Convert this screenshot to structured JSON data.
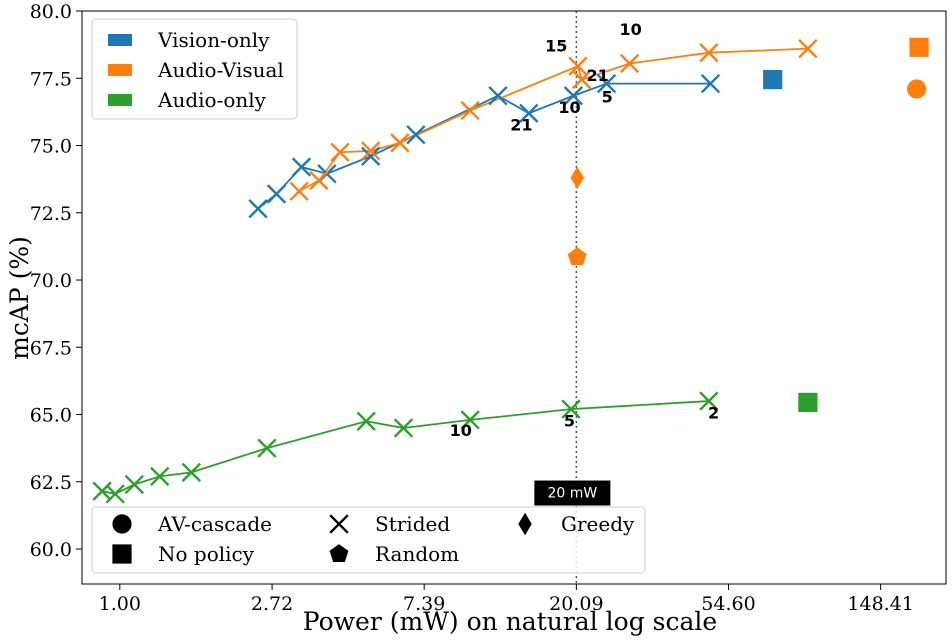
{
  "chart_data": {
    "type": "line",
    "xlabel": "Power (mW) on natural log scale",
    "ylabel": "mcAP (%)",
    "xscale": "log",
    "xlim": [
      0.78,
      228
    ],
    "ylim": [
      58.7,
      80.0
    ],
    "xticks": [
      1.0,
      2.72,
      7.39,
      20.09,
      54.6,
      148.41
    ],
    "xtick_labels": [
      "1.00",
      "2.72",
      "7.39",
      "20.09",
      "54.60",
      "148.41"
    ],
    "yticks": [
      60.0,
      62.5,
      65.0,
      67.5,
      70.0,
      72.5,
      75.0,
      77.5,
      80.0
    ],
    "ytick_labels": [
      "60.0",
      "62.5",
      "65.0",
      "67.5",
      "70.0",
      "72.5",
      "75.0",
      "77.5",
      "80.0"
    ],
    "grid": false,
    "colors": {
      "vision": "#1f77b4",
      "audiovisual": "#ff7f0e",
      "audio": "#2ca02c"
    },
    "series": [
      {
        "name": "Vision-only",
        "key": "vision",
        "marker": "x",
        "x": [
          2.48,
          2.8,
          3.3,
          3.9,
          5.2,
          7.0,
          12.0,
          14.7,
          19.7,
          24.5,
          48.5
        ],
        "y": [
          72.65,
          73.2,
          74.2,
          73.95,
          74.6,
          75.4,
          76.85,
          76.2,
          76.85,
          77.3,
          77.3
        ]
      },
      {
        "name": "Audio-Visual",
        "key": "audiovisual",
        "marker": "x",
        "x": [
          3.25,
          3.7,
          4.25,
          5.2,
          6.3,
          10.0,
          20.3,
          20.8,
          28.5,
          48.0,
          92.0
        ],
        "y": [
          73.3,
          73.7,
          74.75,
          74.8,
          75.1,
          76.3,
          77.95,
          77.45,
          78.05,
          78.45,
          78.6
        ]
      },
      {
        "name": "Audio-only",
        "key": "audio",
        "marker": "x",
        "x": [
          0.89,
          0.97,
          1.1,
          1.3,
          1.6,
          2.63,
          5.05,
          6.45,
          10.0,
          19.4,
          48.0
        ],
        "y": [
          62.15,
          62.05,
          62.4,
          62.7,
          62.85,
          63.75,
          64.75,
          64.5,
          64.8,
          65.2,
          65.5
        ]
      }
    ],
    "extra_points": [
      {
        "series": "vision",
        "marker": "square",
        "x": 73.0,
        "y": 77.45
      },
      {
        "series": "audiovisual",
        "marker": "square",
        "x": 191.0,
        "y": 78.65
      },
      {
        "series": "audiovisual",
        "marker": "circle",
        "x": 188.0,
        "y": 77.1
      },
      {
        "series": "audiovisual",
        "marker": "diamond",
        "x": 20.2,
        "y": 73.8
      },
      {
        "series": "audiovisual",
        "marker": "pentagon",
        "x": 20.2,
        "y": 70.85
      },
      {
        "series": "audio",
        "marker": "square",
        "x": 92.0,
        "y": 65.45
      }
    ],
    "annotations": [
      {
        "text": "15",
        "x": 17.6,
        "y": 78.5
      },
      {
        "text": "10",
        "x": 28.7,
        "y": 79.1
      },
      {
        "text": "21",
        "x": 23.1,
        "y": 77.4
      },
      {
        "text": "5",
        "x": 24.6,
        "y": 76.6
      },
      {
        "text": "21",
        "x": 14.0,
        "y": 75.55
      },
      {
        "text": "10",
        "x": 19.2,
        "y": 76.2
      },
      {
        "text": "10",
        "x": 9.4,
        "y": 64.2
      },
      {
        "text": "5",
        "x": 19.2,
        "y": 64.55
      },
      {
        "text": "2",
        "x": 49.5,
        "y": 64.85
      }
    ],
    "reference_line": {
      "x": 20.09,
      "label": "20 mW",
      "label_y": 62.1
    },
    "legend_series": {
      "location": "top-left",
      "entries": [
        {
          "label": "Vision-only",
          "key": "vision"
        },
        {
          "label": "Audio-Visual",
          "key": "audiovisual"
        },
        {
          "label": "Audio-only",
          "key": "audio"
        }
      ]
    },
    "legend_markers": {
      "location": "bottom-left",
      "entries": [
        {
          "label": "AV-cascade",
          "marker": "circle"
        },
        {
          "label": "No policy",
          "marker": "square"
        },
        {
          "label": "Strided",
          "marker": "x"
        },
        {
          "label": "Random",
          "marker": "pentagon"
        },
        {
          "label": "Greedy",
          "marker": "diamond"
        }
      ]
    }
  }
}
